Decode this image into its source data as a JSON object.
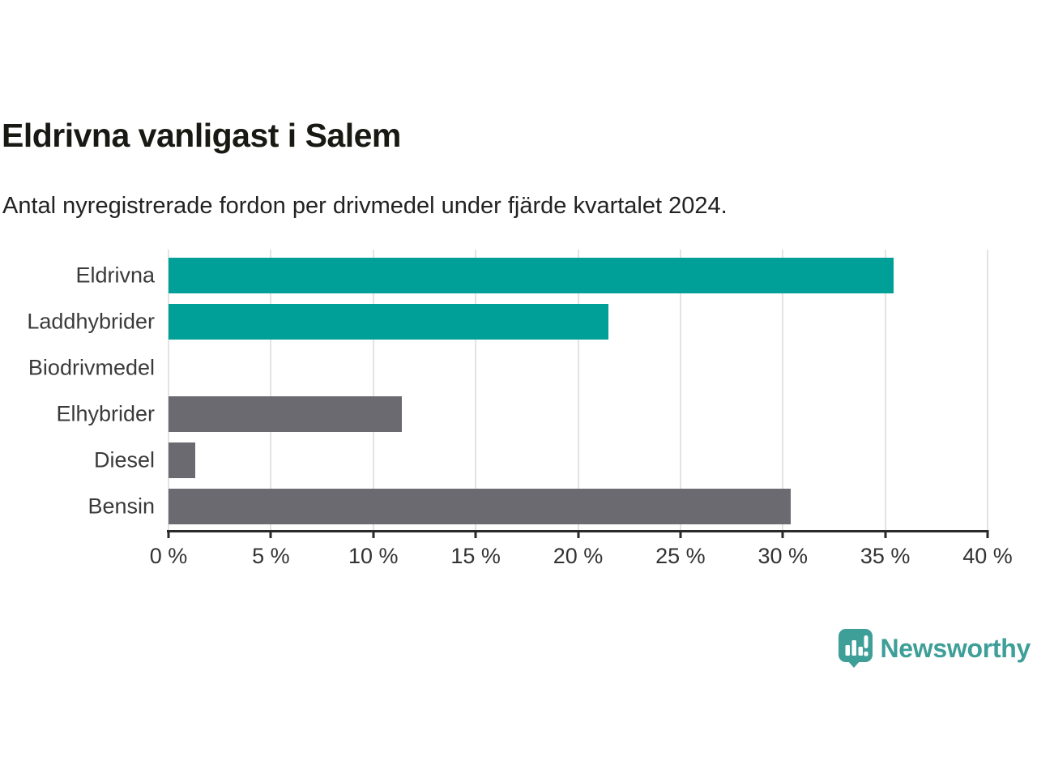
{
  "chart_data": {
    "type": "bar",
    "orientation": "horizontal",
    "title": "Eldrivna vanligast i Salem",
    "subtitle": "Antal nyregistrerade fordon per drivmedel under fjärde kvartalet 2024.",
    "categories": [
      "Eldrivna",
      "Laddhybrider",
      "Biodrivmedel",
      "Elhybrider",
      "Diesel",
      "Bensin"
    ],
    "values": [
      35.4,
      21.5,
      0,
      11.4,
      1.3,
      30.4
    ],
    "unit": "%",
    "xlim": [
      0,
      40
    ],
    "xticks": [
      0,
      5,
      10,
      15,
      20,
      25,
      30,
      35,
      40
    ],
    "xtick_labels": [
      "0 %",
      "5 %",
      "10 %",
      "15 %",
      "20 %",
      "25 %",
      "30 %",
      "35 %",
      "40 %"
    ],
    "bar_colors": [
      "#00A099",
      "#00A099",
      "#6A6A70",
      "#6A6A70",
      "#6A6A70",
      "#6A6A70"
    ],
    "grid": "vertical",
    "legend": "none"
  },
  "colors": {
    "accent_teal": "#00A099",
    "neutral_gray": "#6A6A70",
    "axis": "#2A2A2A",
    "gridline": "#E3E3E3",
    "title_text": "#191913",
    "body_text": "#333333",
    "logo_teal": "#3E9E98"
  },
  "branding": {
    "logo_text": "Newsworthy",
    "logo_icon": "bar-chart-speech-bubble"
  }
}
